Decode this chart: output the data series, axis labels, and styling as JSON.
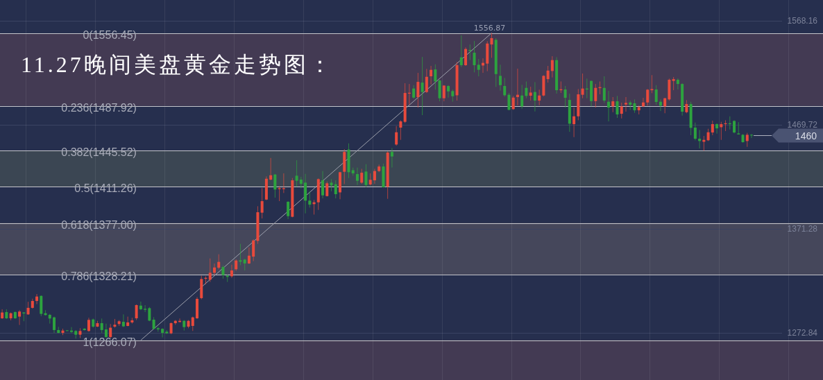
{
  "chart_data": {
    "type": "candlestick",
    "title": "11.27晚间美盘黄金走势图：",
    "categories": [
      null,
      null,
      null,
      null,
      null,
      null,
      null,
      null,
      null,
      null,
      null,
      null,
      null,
      null,
      null,
      null,
      null,
      null,
      null,
      null,
      null,
      null,
      null,
      null,
      null,
      null,
      null,
      null,
      null,
      null,
      null,
      null,
      null,
      null,
      null,
      null,
      null,
      null,
      null,
      null,
      null,
      null,
      null,
      null,
      null,
      null,
      null,
      null,
      null,
      null,
      null,
      null,
      null,
      null,
      null,
      null,
      null,
      null,
      null,
      null,
      null,
      null,
      null,
      null,
      null,
      null,
      null,
      null,
      null,
      null,
      null,
      null,
      null,
      null,
      null,
      null,
      null,
      null,
      null,
      null,
      null,
      null,
      null,
      null,
      null,
      null,
      null,
      null,
      null,
      null,
      null,
      null,
      null,
      null,
      null,
      null,
      null,
      null,
      null,
      null,
      null,
      null,
      null,
      null,
      null,
      null,
      null,
      null,
      null,
      null,
      null,
      null,
      null,
      null,
      null,
      null,
      null,
      null,
      null,
      null,
      null,
      null,
      null,
      null,
      null,
      null,
      null,
      null,
      null,
      null,
      null,
      null,
      null,
      null,
      null,
      null,
      null,
      null,
      null,
      null,
      null,
      null,
      null,
      null,
      null,
      null,
      null,
      null,
      null,
      null,
      null,
      null,
      null,
      null,
      null,
      null,
      null,
      null,
      null,
      null,
      null,
      null,
      null,
      null,
      null,
      null,
      null,
      null,
      null,
      null,
      null,
      null,
      null,
      null,
      null,
      null,
      null,
      null,
      null,
      null,
      null,
      null,
      null,
      null,
      null,
      null,
      null,
      null,
      null,
      null
    ],
    "ohlc": [
      [
        1286.8,
        1295.4,
        1286.2,
        1292.3
      ],
      [
        1292.7,
        1295.4,
        1286.2,
        1286.8
      ],
      [
        1286.8,
        1292.3,
        1284.9,
        1291.6
      ],
      [
        1292.7,
        1293.4,
        1286.2,
        1286.8
      ],
      [
        1288.4,
        1294.5,
        1280.5,
        1293.2
      ],
      [
        1292.3,
        1292.7,
        1284.0,
        1291.4
      ],
      [
        1290.5,
        1302.4,
        1290.1,
        1296.7
      ],
      [
        1296.7,
        1305.4,
        1296.0,
        1303.2
      ],
      [
        1303.2,
        1309.8,
        1300.2,
        1307.4
      ],
      [
        1308.0,
        1308.5,
        1288.8,
        1291.0
      ],
      [
        1291.6,
        1294.5,
        1289.4,
        1289.9
      ],
      [
        1290.1,
        1291.0,
        1281.8,
        1286.6
      ],
      [
        1287.7,
        1288.4,
        1273.0,
        1275.7
      ],
      [
        1275.7,
        1278.7,
        1272.6,
        1273.0
      ],
      [
        1273.0,
        1277.0,
        1270.9,
        1275.2
      ],
      [
        1275.4,
        1275.7,
        1274.8,
        1275.0
      ],
      [
        1275.2,
        1278.5,
        1273.0,
        1273.9
      ],
      [
        1274.8,
        1275.7,
        1267.6,
        1271.3
      ],
      [
        1271.3,
        1277.4,
        1268.2,
        1274.8
      ],
      [
        1277.0,
        1277.4,
        1275.2,
        1275.7
      ],
      [
        1274.8,
        1287.3,
        1274.1,
        1285.3
      ],
      [
        1285.7,
        1286.6,
        1277.9,
        1278.9
      ],
      [
        1278.9,
        1284.4,
        1278.5,
        1282.2
      ],
      [
        1282.2,
        1286.6,
        1273.0,
        1275.7
      ],
      [
        1276.3,
        1281.8,
        1268.2,
        1269.1
      ],
      [
        1269.1,
        1281.4,
        1267.6,
        1277.9
      ],
      [
        1278.9,
        1286.2,
        1277.9,
        1280.7
      ],
      [
        1281.4,
        1285.1,
        1279.6,
        1284.0
      ],
      [
        1283.5,
        1290.5,
        1278.5,
        1279.2
      ],
      [
        1279.6,
        1288.4,
        1279.2,
        1282.9
      ],
      [
        1282.9,
        1287.3,
        1281.8,
        1284.9
      ],
      [
        1286.8,
        1299.9,
        1285.1,
        1299.3
      ],
      [
        1298.8,
        1302.6,
        1294.5,
        1295.4
      ],
      [
        1295.8,
        1299.3,
        1292.7,
        1294.9
      ],
      [
        1296.4,
        1297.5,
        1284.0,
        1284.6
      ],
      [
        1285.5,
        1287.9,
        1276.3,
        1276.8
      ],
      [
        1277.4,
        1278.5,
        1274.1,
        1276.3
      ],
      [
        1276.8,
        1277.4,
        1268.7,
        1273.0
      ],
      [
        1274.1,
        1275.7,
        1271.9,
        1272.6
      ],
      [
        1272.6,
        1282.9,
        1271.7,
        1282.2
      ],
      [
        1282.2,
        1285.1,
        1280.7,
        1284.4
      ],
      [
        1283.3,
        1286.6,
        1282.9,
        1284.4
      ],
      [
        1284.4,
        1285.1,
        1275.2,
        1278.5
      ],
      [
        1278.9,
        1285.1,
        1277.4,
        1284.4
      ],
      [
        1279.6,
        1288.4,
        1274.8,
        1287.7
      ],
      [
        1286.8,
        1306.9,
        1286.2,
        1305.2
      ],
      [
        1305.9,
        1327.1,
        1304.8,
        1324.0
      ],
      [
        1324.2,
        1326.6,
        1319.0,
        1325.1
      ],
      [
        1323.3,
        1343.5,
        1321.2,
        1329.9
      ],
      [
        1329.9,
        1338.7,
        1327.7,
        1334.9
      ],
      [
        1334.7,
        1347.4,
        1333.2,
        1340.2
      ],
      [
        1335.4,
        1336.9,
        1324.4,
        1327.7
      ],
      [
        1327.1,
        1328.2,
        1321.2,
        1326.0
      ],
      [
        1326.6,
        1337.6,
        1325.1,
        1332.1
      ],
      [
        1333.2,
        1342.6,
        1331.7,
        1341.5
      ],
      [
        1341.7,
        1357.3,
        1337.1,
        1340.4
      ],
      [
        1342.4,
        1343.0,
        1332.1,
        1338.7
      ],
      [
        1338.7,
        1354.0,
        1338.2,
        1346.1
      ],
      [
        1345.2,
        1361.6,
        1340.9,
        1360.5
      ],
      [
        1360.1,
        1392.9,
        1357.3,
        1387.2
      ],
      [
        1386.8,
        1410.2,
        1381.3,
        1397.7
      ],
      [
        1399.2,
        1421.1,
        1398.6,
        1418.9
      ],
      [
        1418.1,
        1438.6,
        1417.4,
        1422.2
      ],
      [
        1422.9,
        1423.5,
        1401.0,
        1408.7
      ],
      [
        1409.1,
        1411.9,
        1397.7,
        1410.0
      ],
      [
        1409.1,
        1424.0,
        1405.4,
        1410.0
      ],
      [
        1397.1,
        1397.7,
        1380.7,
        1383.5
      ],
      [
        1382.9,
        1419.6,
        1382.4,
        1417.4
      ],
      [
        1421.8,
        1436.4,
        1411.3,
        1417.0
      ],
      [
        1418.1,
        1420.7,
        1409.8,
        1414.1
      ],
      [
        1415.2,
        1423.5,
        1386.1,
        1398.2
      ],
      [
        1398.2,
        1406.9,
        1391.6,
        1394.4
      ],
      [
        1394.9,
        1398.8,
        1385.0,
        1396.6
      ],
      [
        1396.6,
        1419.2,
        1389.4,
        1418.5
      ],
      [
        1417.4,
        1426.2,
        1400.3,
        1403.2
      ],
      [
        1402.5,
        1416.3,
        1402.1,
        1414.6
      ],
      [
        1415.2,
        1418.5,
        1407.1,
        1412.6
      ],
      [
        1413.7,
        1417.4,
        1400.3,
        1404.3
      ],
      [
        1406.0,
        1425.5,
        1399.5,
        1425.1
      ],
      [
        1425.5,
        1446.9,
        1413.9,
        1444.3
      ],
      [
        1446.5,
        1452.4,
        1419.6,
        1425.1
      ],
      [
        1427.0,
        1429.5,
        1421.8,
        1424.0
      ],
      [
        1423.3,
        1429.5,
        1413.0,
        1417.0
      ],
      [
        1415.2,
        1428.3,
        1414.1,
        1424.6
      ],
      [
        1425.7,
        1432.7,
        1410.9,
        1413.0
      ],
      [
        1413.5,
        1424.0,
        1412.6,
        1417.9
      ],
      [
        1417.4,
        1428.3,
        1414.1,
        1426.2
      ],
      [
        1426.2,
        1432.3,
        1425.1,
        1430.5
      ],
      [
        1430.5,
        1433.2,
        1410.4,
        1410.9
      ],
      [
        1411.3,
        1444.8,
        1399.9,
        1443.7
      ],
      [
        1444.3,
        1448.0,
        1429.5,
        1440.0
      ],
      [
        1451.3,
        1468.8,
        1450.2,
        1462.9
      ],
      [
        1467.3,
        1474.3,
        1455.7,
        1473.2
      ],
      [
        1472.8,
        1509.3,
        1471.7,
        1500.1
      ],
      [
        1499.5,
        1508.6,
        1489.2,
        1500.3
      ],
      [
        1504.3,
        1507.5,
        1494.6,
        1495.7
      ],
      [
        1496.2,
        1519.1,
        1486.3,
        1510.6
      ],
      [
        1509.9,
        1534.2,
        1479.1,
        1501.0
      ],
      [
        1501.0,
        1522.9,
        1500.1,
        1515.4
      ],
      [
        1515.9,
        1525.7,
        1508.2,
        1522.0
      ],
      [
        1522.4,
        1527.2,
        1503.2,
        1511.0
      ],
      [
        1511.9,
        1512.6,
        1492.2,
        1495.1
      ],
      [
        1495.1,
        1507.5,
        1492.2,
        1507.1
      ],
      [
        1506.7,
        1507.5,
        1495.7,
        1501.6
      ],
      [
        1501.9,
        1503.4,
        1491.8,
        1497.0
      ],
      [
        1497.9,
        1529.4,
        1492.9,
        1526.4
      ],
      [
        1533.8,
        1554.6,
        1524.6,
        1526.4
      ],
      [
        1526.4,
        1543.2,
        1525.7,
        1541.7
      ],
      [
        1540.8,
        1546.0,
        1531.2,
        1539.9
      ],
      [
        1538.2,
        1549.3,
        1519.6,
        1526.4
      ],
      [
        1526.8,
        1532.3,
        1515.9,
        1522.0
      ],
      [
        1526.1,
        1532.9,
        1519.1,
        1528.6
      ],
      [
        1527.9,
        1549.1,
        1520.7,
        1546.9
      ],
      [
        1546.0,
        1556.87,
        1533.4,
        1552.0
      ],
      [
        1550.4,
        1552.0,
        1505.8,
        1518.0
      ],
      [
        1516.3,
        1526.8,
        1502.3,
        1507.5
      ],
      [
        1506.7,
        1514.3,
        1496.6,
        1497.9
      ],
      [
        1498.4,
        1500.1,
        1483.7,
        1484.1
      ],
      [
        1484.8,
        1497.3,
        1484.1,
        1495.7
      ],
      [
        1496.2,
        1523.1,
        1488.5,
        1498.4
      ],
      [
        1497.7,
        1507.8,
        1485.2,
        1487.4
      ],
      [
        1504.9,
        1511.0,
        1495.1,
        1497.3
      ],
      [
        1497.5,
        1506.0,
        1492.9,
        1500.5
      ],
      [
        1501.0,
        1510.4,
        1482.6,
        1492.9
      ],
      [
        1492.9,
        1503.2,
        1488.5,
        1497.7
      ],
      [
        1497.7,
        1516.9,
        1496.8,
        1516.3
      ],
      [
        1513.2,
        1525.7,
        1509.9,
        1521.3
      ],
      [
        1520.9,
        1534.9,
        1514.8,
        1531.2
      ],
      [
        1531.2,
        1534.0,
        1499.5,
        1502.7
      ],
      [
        1502.7,
        1511.0,
        1500.1,
        1503.6
      ],
      [
        1503.4,
        1506.7,
        1486.3,
        1495.5
      ],
      [
        1493.5,
        1499.4,
        1463.3,
        1471.0
      ],
      [
        1470.6,
        1486.3,
        1458.3,
        1478.0
      ],
      [
        1478.0,
        1503.8,
        1474.3,
        1498.8
      ],
      [
        1498.4,
        1518.5,
        1495.1,
        1504.3
      ],
      [
        1504.3,
        1513.7,
        1495.1,
        1503.4
      ],
      [
        1511.5,
        1511.9,
        1487.4,
        1492.4
      ],
      [
        1492.4,
        1508.6,
        1486.3,
        1504.9
      ],
      [
        1504.7,
        1511.0,
        1498.8,
        1505.6
      ],
      [
        1504.9,
        1515.9,
        1490.7,
        1492.9
      ],
      [
        1491.8,
        1502.1,
        1473.2,
        1486.3
      ],
      [
        1487.4,
        1496.2,
        1481.9,
        1492.2
      ],
      [
        1492.2,
        1497.3,
        1476.5,
        1479.8
      ],
      [
        1480.4,
        1490.9,
        1476.0,
        1487.4
      ],
      [
        1489.2,
        1496.2,
        1482.4,
        1490.7
      ],
      [
        1491.1,
        1492.9,
        1484.1,
        1489.0
      ],
      [
        1490.3,
        1494.0,
        1481.3,
        1483.7
      ],
      [
        1483.7,
        1488.5,
        1479.8,
        1486.8
      ],
      [
        1487.4,
        1495.5,
        1486.8,
        1491.1
      ],
      [
        1491.1,
        1503.8,
        1488.1,
        1503.2
      ],
      [
        1502.7,
        1517.0,
        1499.9,
        1503.8
      ],
      [
        1503.4,
        1507.5,
        1489.0,
        1491.6
      ],
      [
        1491.8,
        1494.0,
        1483.0,
        1488.1
      ],
      [
        1487.4,
        1495.5,
        1480.9,
        1495.1
      ],
      [
        1494.0,
        1513.7,
        1492.9,
        1512.6
      ],
      [
        1511.5,
        1515.2,
        1502.7,
        1513.2
      ],
      [
        1512.6,
        1513.9,
        1503.4,
        1508.6
      ],
      [
        1508.6,
        1509.3,
        1478.7,
        1482.4
      ],
      [
        1481.9,
        1493.3,
        1480.9,
        1489.6
      ],
      [
        1489.6,
        1491.8,
        1460.1,
        1467.1
      ],
      [
        1467.3,
        1472.1,
        1455.3,
        1456.8
      ],
      [
        1456.8,
        1465.1,
        1447.6,
        1454.6
      ],
      [
        1453.9,
        1459.4,
        1445.4,
        1455.7
      ],
      [
        1455.3,
        1466.2,
        1454.6,
        1462.9
      ],
      [
        1462.7,
        1473.9,
        1460.1,
        1470.6
      ],
      [
        1470.6,
        1471.4,
        1461.6,
        1466.6
      ],
      [
        1467.7,
        1472.8,
        1455.7,
        1470.6
      ],
      [
        1470.6,
        1474.3,
        1464.0,
        1471.4
      ],
      [
        1471.4,
        1478.0,
        1465.5,
        1470.6
      ],
      [
        1473.6,
        1474.3,
        1461.8,
        1462.7
      ],
      [
        1461.8,
        1472.5,
        1460.7,
        1460.9
      ],
      [
        1460.5,
        1461.2,
        1453.1,
        1453.5
      ],
      [
        1454.6,
        1462.3,
        1449.1,
        1460.5
      ],
      [
        1460.5,
        1461.2,
        1457.4,
        1460.0
      ],
      null,
      null,
      null,
      null,
      null,
      null,
      null,
      null,
      null,
      null,
      null,
      null,
      null,
      null,
      null,
      null
    ],
    "colors": [
      "#e84a3c",
      "#2da33f",
      "#e84a3c",
      "#2da33f",
      "#e84a3c",
      "#2da33f",
      "#e84a3c",
      "#e84a3c",
      "#e84a3c",
      "#2da33f",
      "#2da33f",
      "#2da33f",
      "#2da33f",
      "#2da33f",
      "#e84a3c",
      "#2da33f",
      "#2da33f",
      "#2da33f",
      "#e84a3c",
      "#2da33f",
      "#e84a3c",
      "#2da33f",
      "#e84a3c",
      "#2da33f",
      "#2da33f",
      "#e84a3c",
      "#e84a3c",
      "#e84a3c",
      "#2da33f",
      "#e84a3c",
      "#e84a3c",
      "#e84a3c",
      "#2da33f",
      "#2da33f",
      "#2da33f",
      "#2da33f",
      "#2da33f",
      "#2da33f",
      "#2da33f",
      "#e84a3c",
      "#e84a3c",
      "#e84a3c",
      "#2da33f",
      "#e84a3c",
      "#e84a3c",
      "#e84a3c",
      "#e84a3c",
      "#e84a3c",
      "#e84a3c",
      "#e84a3c",
      "#e84a3c",
      "#2da33f",
      "#2da33f",
      "#e84a3c",
      "#e84a3c",
      "#2da33f",
      "#2da33f",
      "#e84a3c",
      "#e84a3c",
      "#e84a3c",
      "#e84a3c",
      "#e84a3c",
      "#e84a3c",
      "#2da33f",
      "#e84a3c",
      "#e84a3c",
      "#2da33f",
      "#e84a3c",
      "#2da33f",
      "#2da33f",
      "#2da33f",
      "#2da33f",
      "#e84a3c",
      "#e84a3c",
      "#2da33f",
      "#e84a3c",
      "#2da33f",
      "#2da33f",
      "#e84a3c",
      "#e84a3c",
      "#2da33f",
      "#2da33f",
      "#2da33f",
      "#e84a3c",
      "#2da33f",
      "#e84a3c",
      "#e84a3c",
      "#e84a3c",
      "#2da33f",
      "#e84a3c",
      "#2da33f",
      "#e84a3c",
      "#e84a3c",
      "#e84a3c",
      "#e84a3c",
      "#2da33f",
      "#e84a3c",
      "#2da33f",
      "#e84a3c",
      "#e84a3c",
      "#2da33f",
      "#2da33f",
      "#e84a3c",
      "#2da33f",
      "#2da33f",
      "#e84a3c",
      "#2da33f",
      "#e84a3c",
      "#2da33f",
      "#2da33f",
      "#2da33f",
      "#e84a3c",
      "#e84a3c",
      "#e84a3c",
      "#2da33f",
      "#2da33f",
      "#2da33f",
      "#2da33f",
      "#e84a3c",
      "#e84a3c",
      "#2da33f",
      "#2da33f",
      "#e84a3c",
      "#2da33f",
      "#e84a3c",
      "#e84a3c",
      "#e84a3c",
      "#e84a3c",
      "#2da33f",
      "#e84a3c",
      "#2da33f",
      "#2da33f",
      "#e84a3c",
      "#e84a3c",
      "#e84a3c",
      "#2da33f",
      "#2da33f",
      "#e84a3c",
      "#e84a3c",
      "#2da33f",
      "#2da33f",
      "#e84a3c",
      "#2da33f",
      "#e84a3c",
      "#e84a3c",
      "#2da33f",
      "#2da33f",
      "#e84a3c",
      "#e84a3c",
      "#e84a3c",
      "#e84a3c",
      "#2da33f",
      "#2da33f",
      "#e84a3c",
      "#e84a3c",
      "#e84a3c",
      "#2da33f",
      "#2da33f",
      "#e84a3c",
      "#2da33f",
      "#2da33f",
      "#2da33f",
      "#e84a3c",
      "#e84a3c",
      "#e84a3c",
      "#2da33f",
      "#e84a3c",
      "#e84a3c",
      "#2da33f",
      "#2da33f",
      "#2da33f",
      "#2da33f",
      "#e84a3c",
      "#2da33f",
      null,
      null,
      null,
      null,
      null,
      null,
      null,
      null,
      null,
      null,
      null,
      null,
      null,
      null,
      null,
      null
    ],
    "series": [
      {
        "type": "line",
        "color": "#9ea1ad",
        "values": [
          null,
          null,
          null,
          null,
          null,
          null,
          null,
          null,
          null,
          null,
          null,
          null,
          null,
          null,
          null,
          null,
          null,
          null,
          null,
          null,
          null,
          null,
          null,
          null,
          null,
          null,
          null,
          null,
          null,
          null,
          null,
          null,
          1266.07,
          null,
          null,
          null,
          null,
          null,
          null,
          null,
          null,
          null,
          null,
          null,
          null,
          null,
          null,
          null,
          null,
          null,
          null,
          null,
          null,
          null,
          null,
          null,
          null,
          null,
          null,
          null,
          null,
          null,
          null,
          null,
          null,
          null,
          null,
          null,
          null,
          null,
          null,
          null,
          null,
          null,
          null,
          null,
          null,
          null,
          null,
          null,
          null,
          null,
          null,
          null,
          null,
          null,
          null,
          null,
          null,
          null,
          null,
          null,
          null,
          null,
          null,
          null,
          null,
          null,
          null,
          null,
          null,
          null,
          null,
          null,
          null,
          null,
          null,
          null,
          null,
          null,
          null,
          null,
          null,
          1556.87,
          null,
          null,
          null,
          null,
          null,
          null,
          null,
          null,
          null,
          null,
          null,
          null,
          null,
          null,
          null,
          null,
          null,
          null,
          null,
          null,
          null,
          null,
          null,
          null,
          null,
          null,
          null,
          null,
          null,
          null,
          null,
          null,
          null,
          null,
          null,
          null,
          null,
          null,
          null,
          null,
          null,
          null,
          null,
          null,
          null,
          null,
          null,
          null,
          null,
          null,
          null,
          null,
          null,
          null,
          null,
          null,
          null,
          null,
          null,
          null,
          null,
          null,
          null,
          null,
          null,
          null,
          null,
          null,
          null,
          null,
          null,
          null,
          null,
          null,
          null,
          null
        ],
        "value_labels": [
          null,
          null,
          null,
          null,
          null,
          null,
          null,
          null,
          null,
          null,
          null,
          null,
          null,
          null,
          null,
          null,
          null,
          null,
          null,
          null,
          null,
          null,
          null,
          null,
          null,
          null,
          null,
          null,
          null,
          null,
          null,
          null,
          null,
          null,
          null,
          null,
          null,
          null,
          null,
          null,
          null,
          null,
          null,
          null,
          null,
          null,
          null,
          null,
          null,
          null,
          null,
          null,
          null,
          null,
          null,
          null,
          null,
          null,
          null,
          null,
          null,
          null,
          null,
          null,
          null,
          null,
          null,
          null,
          null,
          null,
          null,
          null,
          null,
          null,
          null,
          null,
          null,
          null,
          null,
          null,
          null,
          null,
          null,
          null,
          null,
          null,
          null,
          null,
          null,
          null,
          null,
          null,
          null,
          null,
          null,
          null,
          null,
          null,
          null,
          null,
          null,
          null,
          null,
          null,
          null,
          null,
          null,
          null,
          null,
          null,
          null,
          null,
          null,
          "1556.87",
          null,
          null,
          null,
          null,
          null,
          null,
          null,
          null,
          null,
          null,
          null,
          null,
          null,
          null,
          null,
          null,
          null,
          null,
          null,
          null,
          null,
          null,
          null,
          null,
          null,
          null,
          null,
          null,
          null,
          null,
          null,
          null,
          null,
          null,
          null,
          null,
          null,
          null,
          null,
          null,
          null,
          null,
          null,
          null,
          null,
          null,
          null,
          null,
          null,
          null,
          null,
          null,
          null,
          null,
          null,
          null,
          null,
          null,
          null,
          null,
          null,
          null,
          null,
          null,
          null,
          null,
          null,
          null,
          null,
          null,
          null,
          null,
          null,
          null,
          null,
          null
        ]
      }
    ],
    "ylim": [
      1228.4,
      1588.1
    ],
    "yticks": [
      1272.84,
      1371.28,
      1469.72,
      1568.16
    ],
    "tick_labels": "y",
    "grid": true,
    "ref_lines": [
      {
        "axis": "y",
        "value": 1556.45,
        "label": "0(1556.45)",
        "color": "#c6c6cb"
      },
      {
        "axis": "y",
        "value": 1487.92,
        "label": "0.236(1487.92)",
        "color": "#c6c6cb"
      },
      {
        "axis": "y",
        "value": 1445.52,
        "label": "0.382(1445.52)",
        "color": "#c6c6cb"
      },
      {
        "axis": "y",
        "value": 1411.26,
        "label": "0.5(1411.26)",
        "color": "#c6c6cb"
      },
      {
        "axis": "y",
        "value": 1377,
        "label": "0.618(1377.00)",
        "color": "#c6c6cb"
      },
      {
        "axis": "y",
        "value": 1328.21,
        "label": "0.786(1328.21)",
        "color": "#c6c6cb"
      },
      {
        "axis": "y",
        "value": 1266.07,
        "label": "1(1266.07)",
        "color": "#c6c6cb"
      }
    ],
    "bands": [
      {
        "axis": "y",
        "from": 1487.92,
        "to": 1556.45,
        "color": "#433a53"
      },
      {
        "axis": "y",
        "from": 1411.26,
        "to": 1445.52,
        "color": "#3b4653"
      },
      {
        "axis": "y",
        "from": 1328.21,
        "to": 1377,
        "color": "#45475b"
      },
      {
        "axis": "y",
        "from": 1228.4,
        "to": 1266.07,
        "color": "#433a53"
      }
    ],
    "annotations": [
      "1460"
    ]
  }
}
